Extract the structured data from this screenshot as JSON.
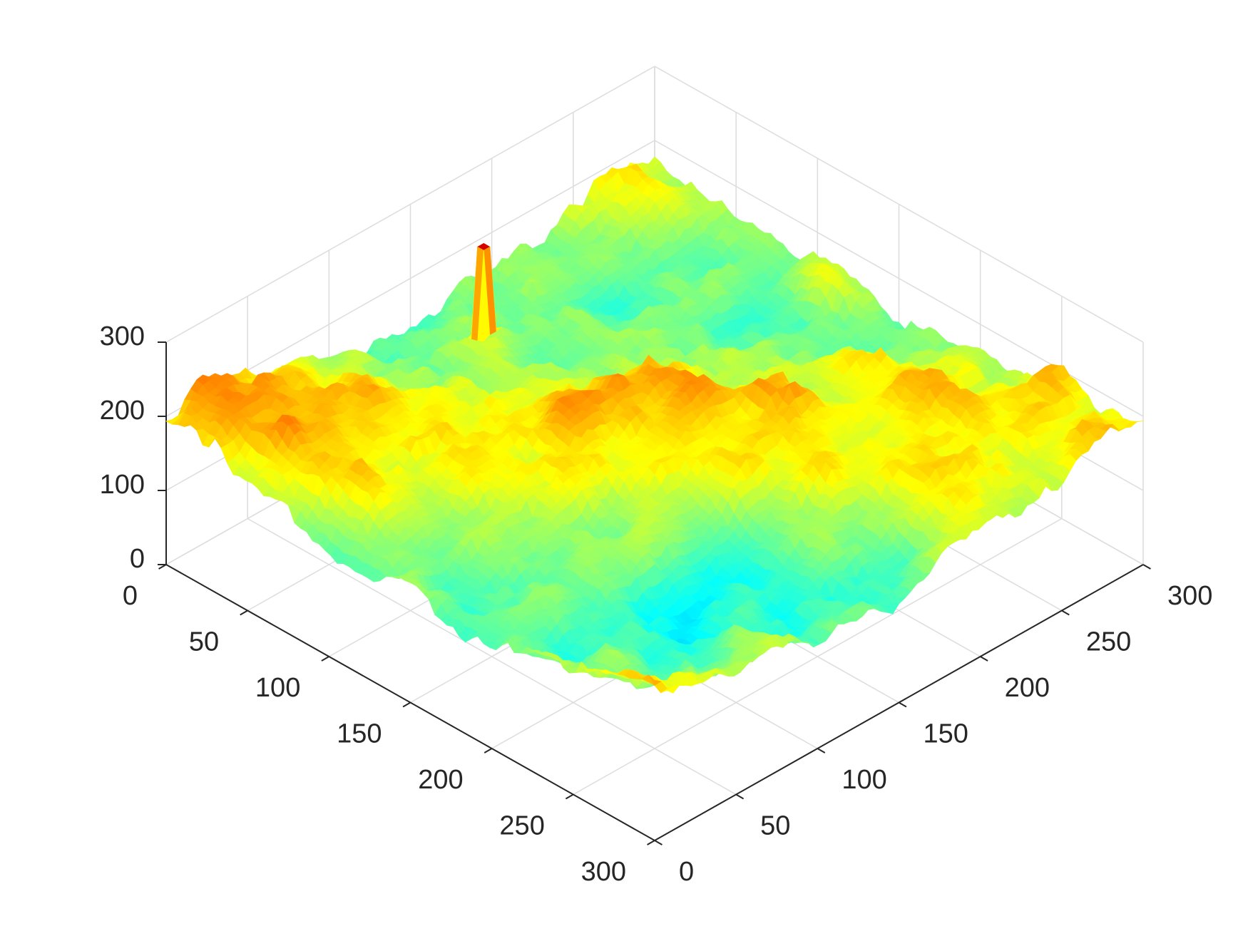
{
  "chart_data": {
    "type": "surface",
    "title": "",
    "xlabel": "",
    "ylabel": "",
    "zlabel": "",
    "xlim": [
      0,
      300
    ],
    "ylim": [
      0,
      300
    ],
    "zlim": [
      0,
      300
    ],
    "x_ticks": [
      "0",
      "50",
      "100",
      "150",
      "200",
      "250",
      "300"
    ],
    "y_ticks": [
      "0",
      "50",
      "100",
      "150",
      "200",
      "250",
      "300"
    ],
    "z_ticks": [
      "0",
      "100",
      "200",
      "300"
    ],
    "grid": true,
    "colormap": "jet",
    "color_range": [
      0,
      300
    ],
    "surface_description": "rough terrain height map on a 300x300 grid; mostly z 120-220, a high ridge near the far-right edge (~250-280) and a single narrow spike (~280) near the left-center",
    "colors": {
      "low": "#0000ff",
      "mid": "#00ffff",
      "mid_high": "#ffff00",
      "high": "#ff0000",
      "top": "#800000"
    }
  }
}
